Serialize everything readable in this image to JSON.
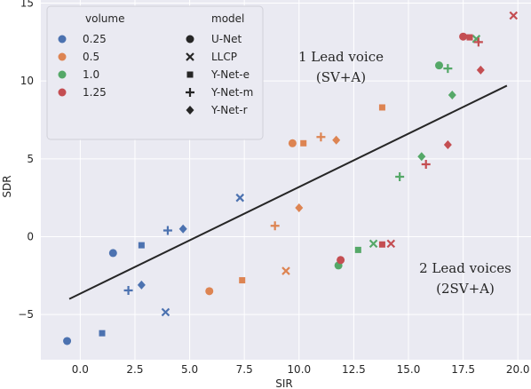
{
  "colors": {
    "background": "#eaeaf2",
    "grid": "#ffffff",
    "legend_bg": "#eaeaf2",
    "trend_line": "#262626",
    "volume_0.25": "#4c72b0",
    "volume_0.5": "#dd8452",
    "volume_1.0": "#55a868",
    "volume_1.25": "#c44e52"
  },
  "annotations": {
    "one_lead_line1": "1 Lead voice",
    "one_lead_line2": "(SV+A)",
    "two_lead_line1": "2 Lead voices",
    "two_lead_line2": "(2SV+A)"
  },
  "legend": {
    "volume_title": "volume",
    "model_title": "model",
    "volume_items": [
      {
        "label": "0.25",
        "color": "#4c72b0"
      },
      {
        "label": "0.5",
        "color": "#dd8452"
      },
      {
        "label": "1.0",
        "color": "#55a868"
      },
      {
        "label": "1.25",
        "color": "#c44e52"
      }
    ],
    "model_items": [
      {
        "label": "U-Net",
        "marker": "circle"
      },
      {
        "label": "LLCP",
        "marker": "x"
      },
      {
        "label": "Y-Net-e",
        "marker": "square"
      },
      {
        "label": "Y-Net-m",
        "marker": "plus"
      },
      {
        "label": "Y-Net-r",
        "marker": "diamond"
      }
    ]
  },
  "chart_data": {
    "type": "scatter",
    "xlabel": "SIR",
    "ylabel": "SDR",
    "xlim": [
      -1.8,
      20.6
    ],
    "ylim": [
      -7.9,
      15.2
    ],
    "xticks": [
      "0.0",
      "2.5",
      "5.0",
      "7.5",
      "10.0",
      "12.5",
      "15.0",
      "17.5",
      "20.0"
    ],
    "yticks": [
      "-5",
      "0",
      "5",
      "10",
      "15"
    ],
    "grid": true,
    "legend_position": "top-left",
    "trend_line": [
      [
        -0.5,
        -4.0
      ],
      [
        19.5,
        9.7
      ]
    ],
    "points": [
      {
        "x": -0.6,
        "y": -6.7,
        "volume": "0.25",
        "model": "U-Net"
      },
      {
        "x": 1.5,
        "y": -1.05,
        "volume": "0.25",
        "model": "U-Net"
      },
      {
        "x": 3.9,
        "y": -4.85,
        "volume": "0.25",
        "model": "LLCP"
      },
      {
        "x": 7.3,
        "y": 2.5,
        "volume": "0.25",
        "model": "LLCP"
      },
      {
        "x": 1.0,
        "y": -6.2,
        "volume": "0.25",
        "model": "Y-Net-e"
      },
      {
        "x": 2.8,
        "y": -0.55,
        "volume": "0.25",
        "model": "Y-Net-e"
      },
      {
        "x": 2.2,
        "y": -3.45,
        "volume": "0.25",
        "model": "Y-Net-m"
      },
      {
        "x": 4.0,
        "y": 0.4,
        "volume": "0.25",
        "model": "Y-Net-m"
      },
      {
        "x": 2.8,
        "y": -3.1,
        "volume": "0.25",
        "model": "Y-Net-r"
      },
      {
        "x": 4.7,
        "y": 0.5,
        "volume": "0.25",
        "model": "Y-Net-r"
      },
      {
        "x": 5.9,
        "y": -3.5,
        "volume": "0.5",
        "model": "U-Net"
      },
      {
        "x": 9.7,
        "y": 6.0,
        "volume": "0.5",
        "model": "U-Net"
      },
      {
        "x": 9.4,
        "y": -2.2,
        "volume": "0.5",
        "model": "LLCP"
      },
      {
        "x": 7.4,
        "y": -2.8,
        "volume": "0.5",
        "model": "Y-Net-e"
      },
      {
        "x": 10.2,
        "y": 6.0,
        "volume": "0.5",
        "model": "Y-Net-e"
      },
      {
        "x": 13.8,
        "y": 8.3,
        "volume": "0.5",
        "model": "Y-Net-e"
      },
      {
        "x": 8.9,
        "y": 0.7,
        "volume": "0.5",
        "model": "Y-Net-m"
      },
      {
        "x": 11.0,
        "y": 6.4,
        "volume": "0.5",
        "model": "Y-Net-m"
      },
      {
        "x": 10.0,
        "y": 1.85,
        "volume": "0.5",
        "model": "Y-Net-r"
      },
      {
        "x": 11.7,
        "y": 6.2,
        "volume": "0.5",
        "model": "Y-Net-r"
      },
      {
        "x": 11.8,
        "y": -1.85,
        "volume": "1.0",
        "model": "U-Net"
      },
      {
        "x": 16.4,
        "y": 11.0,
        "volume": "1.0",
        "model": "U-Net"
      },
      {
        "x": 13.4,
        "y": -0.45,
        "volume": "1.0",
        "model": "LLCP"
      },
      {
        "x": 18.1,
        "y": 12.7,
        "volume": "1.0",
        "model": "LLCP"
      },
      {
        "x": 12.7,
        "y": -0.85,
        "volume": "1.0",
        "model": "Y-Net-e"
      },
      {
        "x": 14.6,
        "y": 3.85,
        "volume": "1.0",
        "model": "Y-Net-m"
      },
      {
        "x": 16.8,
        "y": 10.8,
        "volume": "1.0",
        "model": "Y-Net-m"
      },
      {
        "x": 15.6,
        "y": 5.15,
        "volume": "1.0",
        "model": "Y-Net-r"
      },
      {
        "x": 17.0,
        "y": 9.1,
        "volume": "1.0",
        "model": "Y-Net-r"
      },
      {
        "x": 11.9,
        "y": -1.5,
        "volume": "1.25",
        "model": "U-Net"
      },
      {
        "x": 17.5,
        "y": 12.85,
        "volume": "1.25",
        "model": "U-Net"
      },
      {
        "x": 14.2,
        "y": -0.45,
        "volume": "1.25",
        "model": "LLCP"
      },
      {
        "x": 19.8,
        "y": 14.2,
        "volume": "1.25",
        "model": "LLCP"
      },
      {
        "x": 13.8,
        "y": -0.5,
        "volume": "1.25",
        "model": "Y-Net-e"
      },
      {
        "x": 17.8,
        "y": 12.8,
        "volume": "1.25",
        "model": "Y-Net-e"
      },
      {
        "x": 15.8,
        "y": 4.65,
        "volume": "1.25",
        "model": "Y-Net-m"
      },
      {
        "x": 18.2,
        "y": 12.5,
        "volume": "1.25",
        "model": "Y-Net-m"
      },
      {
        "x": 16.8,
        "y": 5.9,
        "volume": "1.25",
        "model": "Y-Net-r"
      },
      {
        "x": 18.3,
        "y": 10.7,
        "volume": "1.25",
        "model": "Y-Net-r"
      }
    ]
  }
}
